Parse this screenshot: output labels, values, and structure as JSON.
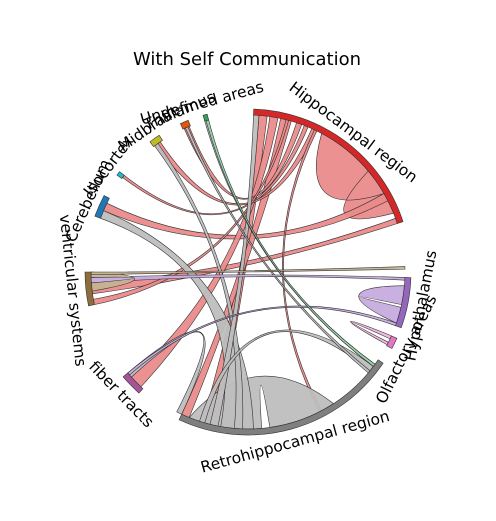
{
  "title": "With Self Communication",
  "chart_data": {
    "type": "chord",
    "title": "With Self Communication",
    "self_links": true,
    "regions": [
      {
        "name": "Hippocampal region",
        "color": "#d62728",
        "ribbon_color": "#ea8b8b",
        "start": -88,
        "end": -18
      },
      {
        "name": "Hypothalamus",
        "color": "#9467bd",
        "ribbon_color": "#c6acdf",
        "start": 2,
        "end": 20
      },
      {
        "name": "Olfactory areas",
        "color": "#e377c2",
        "ribbon_color": "#f2b5e0",
        "start": 24,
        "end": 28
      },
      {
        "name": "Retrohippocampal region",
        "color": "#7f7f7f",
        "ribbon_color": "#bebebe",
        "start": 34,
        "end": 115
      },
      {
        "name": "fiber tracts",
        "color": "#a6549a",
        "ribbon_color": "#d3a2cc",
        "start": 132,
        "end": 140
      },
      {
        "name": "ventricular systems",
        "color": "#8c6d3b",
        "ribbon_color": "#c5b394",
        "start": 168,
        "end": 180
      },
      {
        "name": "Cerebellum",
        "color": "#1f77b4",
        "ribbon_color": "#8fbbda",
        "start": 200,
        "end": 208
      },
      {
        "name": "Isocortex",
        "color": "#17becf",
        "ribbon_color": "#8bdee7",
        "start": 216.5,
        "end": 218
      },
      {
        "name": "Midbrain",
        "color": "#bcbd22",
        "ribbon_color": "#dedf91",
        "start": 233,
        "end": 237
      },
      {
        "name": "Thalamus",
        "color": "#e6550d",
        "ribbon_color": "#f3aa86",
        "start": 245.5,
        "end": 248.5
      },
      {
        "name": "Undefined areas",
        "color": "#31a354",
        "ribbon_color": "#98d1aa",
        "start": 254,
        "end": 255.5
      }
    ],
    "links": [
      {
        "source": 0,
        "target": 0,
        "a": [
          -62,
          -22
        ],
        "b": [
          -40,
          -30
        ],
        "kind": "self"
      },
      {
        "source": 0,
        "target": 5,
        "a": [
          -20,
          -18
        ],
        "b": [
          172,
          176
        ]
      },
      {
        "source": 0,
        "target": 6,
        "a": [
          -30,
          -27
        ],
        "b": [
          203,
          206
        ]
      },
      {
        "source": 0,
        "target": 3,
        "a": [
          -86,
          -83
        ],
        "b": [
          101,
          107
        ]
      },
      {
        "source": 0,
        "target": 4,
        "a": [
          -82,
          -79
        ],
        "b": [
          133,
          138
        ]
      },
      {
        "source": 0,
        "target": 3,
        "a": [
          -78,
          -74
        ],
        "b": [
          112,
          115
        ]
      },
      {
        "source": 0,
        "target": 9,
        "a": [
          -72,
          -70
        ],
        "b": [
          246,
          248
        ]
      },
      {
        "source": 0,
        "target": 7,
        "a": [
          -69,
          -67.5
        ],
        "b": [
          217,
          218
        ]
      },
      {
        "source": 0,
        "target": 8,
        "a": [
          -66,
          -64
        ],
        "b": [
          234,
          236
        ]
      },
      {
        "source": 0,
        "target": 5,
        "a": [
          -76,
          -75
        ],
        "b": [
          168,
          170
        ]
      },
      {
        "source": 0,
        "target": 3,
        "a": [
          -65,
          -64
        ],
        "b": [
          62,
          63
        ]
      },
      {
        "source": 3,
        "target": 3,
        "a": [
          57,
          82
        ],
        "b": [
          85,
          112
        ],
        "kind": "self"
      },
      {
        "source": 3,
        "target": 6,
        "a": [
          88,
          100
        ],
        "b": [
          200,
          203
        ]
      },
      {
        "source": 3,
        "target": 8,
        "a": [
          92,
          95
        ],
        "b": [
          233.5,
          235
        ]
      },
      {
        "source": 3,
        "target": 0,
        "a": [
          101,
          104
        ],
        "b": [
          -88,
          -86
        ]
      },
      {
        "source": 3,
        "target": 4,
        "a": [
          115,
          117
        ],
        "b": [
          138,
          140
        ]
      },
      {
        "source": 3,
        "target": 3,
        "a": [
          106,
          108
        ],
        "b": [
          37,
          39
        ]
      },
      {
        "source": 3,
        "target": 10,
        "a": [
          36,
          37
        ],
        "b": [
          254,
          255
        ]
      },
      {
        "source": 3,
        "target": 9,
        "a": [
          39,
          40
        ],
        "b": [
          246.5,
          247.5
        ]
      },
      {
        "source": 1,
        "target": 1,
        "a": [
          5,
          12
        ],
        "b": [
          13,
          19
        ],
        "kind": "self"
      },
      {
        "source": 1,
        "target": 5,
        "a": [
          2,
          3
        ],
        "b": [
          176,
          178
        ]
      },
      {
        "source": 1,
        "target": 4,
        "a": [
          19,
          20
        ],
        "b": [
          139,
          140
        ]
      },
      {
        "source": 2,
        "target": 2,
        "a": [
          24,
          25.2
        ],
        "b": [
          26.6,
          27.6
        ],
        "kind": "self"
      },
      {
        "source": 5,
        "target": 5,
        "a": [
          178,
          180
        ],
        "b": [
          173,
          176
        ],
        "kind": "self"
      },
      {
        "source": 5,
        "target": 0,
        "a": [
          179,
          180
        ],
        "b": [
          -2,
          -1
        ]
      },
      {
        "source": 10,
        "target": 3,
        "a": [
          254.5,
          255.5
        ],
        "b": [
          36,
          37
        ]
      }
    ]
  }
}
